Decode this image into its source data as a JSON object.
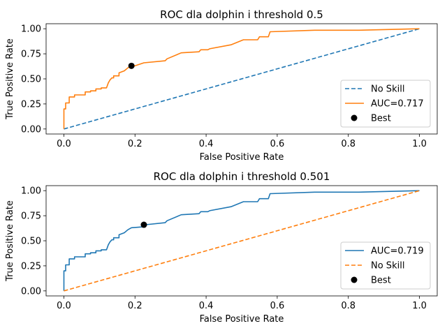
{
  "chart_data": [
    {
      "type": "line",
      "title": "ROC dla dolphin i threshold  0.5",
      "xlabel": "False Positive Rate",
      "ylabel": "True Positive Rate",
      "xlim": [
        -0.05,
        1.05
      ],
      "ylim": [
        -0.05,
        1.05
      ],
      "xticks": [
        "0.0",
        "0.2",
        "0.4",
        "0.6",
        "0.8",
        "1.0"
      ],
      "yticks": [
        "0.00",
        "0.25",
        "0.50",
        "0.75",
        "1.00"
      ],
      "grid": false,
      "legend_position": "lower-right",
      "series": [
        {
          "name": "No Skill",
          "color": "#1f77b4",
          "style": "dashed",
          "x": [
            0,
            1
          ],
          "y": [
            0,
            1
          ]
        },
        {
          "name": "AUC=0.717",
          "color": "#ff7f0e",
          "style": "solid",
          "x": [
            0,
            0,
            0.005,
            0.005,
            0.015,
            0.015,
            0.03,
            0.03,
            0.06,
            0.06,
            0.075,
            0.075,
            0.09,
            0.09,
            0.105,
            0.105,
            0.12,
            0.125,
            0.13,
            0.135,
            0.14,
            0.14,
            0.155,
            0.155,
            0.17,
            0.18,
            0.19,
            0.2,
            0.225,
            0.285,
            0.29,
            0.33,
            0.38,
            0.385,
            0.405,
            0.41,
            0.47,
            0.505,
            0.545,
            0.55,
            0.575,
            0.58,
            0.705,
            0.83,
            1.0
          ],
          "y": [
            0,
            0.2,
            0.2,
            0.26,
            0.26,
            0.32,
            0.32,
            0.34,
            0.34,
            0.37,
            0.37,
            0.38,
            0.38,
            0.4,
            0.4,
            0.41,
            0.41,
            0.46,
            0.49,
            0.51,
            0.51,
            0.53,
            0.53,
            0.56,
            0.58,
            0.61,
            0.63,
            0.63,
            0.66,
            0.68,
            0.7,
            0.76,
            0.77,
            0.79,
            0.79,
            0.8,
            0.84,
            0.89,
            0.89,
            0.92,
            0.92,
            0.97,
            0.985,
            0.985,
            1.0
          ]
        },
        {
          "name": "Best",
          "color": "#000000",
          "style": "point",
          "x": [
            0.19
          ],
          "y": [
            0.63
          ]
        }
      ]
    },
    {
      "type": "line",
      "title": "ROC dla dolphin i threshold  0.501",
      "xlabel": "False Positive Rate",
      "ylabel": "True Positive Rate",
      "xlim": [
        -0.05,
        1.05
      ],
      "ylim": [
        -0.05,
        1.05
      ],
      "xticks": [
        "0.0",
        "0.2",
        "0.4",
        "0.6",
        "0.8",
        "1.0"
      ],
      "yticks": [
        "0.00",
        "0.25",
        "0.50",
        "0.75",
        "1.00"
      ],
      "grid": false,
      "legend_position": "lower-right",
      "series": [
        {
          "name": "AUC=0.719",
          "color": "#1f77b4",
          "style": "solid",
          "x": [
            0,
            0,
            0.005,
            0.005,
            0.015,
            0.015,
            0.03,
            0.03,
            0.06,
            0.06,
            0.075,
            0.075,
            0.09,
            0.09,
            0.105,
            0.105,
            0.12,
            0.125,
            0.13,
            0.135,
            0.14,
            0.14,
            0.155,
            0.155,
            0.17,
            0.18,
            0.19,
            0.225,
            0.23,
            0.285,
            0.29,
            0.33,
            0.38,
            0.385,
            0.405,
            0.41,
            0.47,
            0.505,
            0.545,
            0.55,
            0.575,
            0.58,
            0.705,
            0.83,
            1.0
          ],
          "y": [
            0,
            0.2,
            0.2,
            0.26,
            0.26,
            0.32,
            0.32,
            0.34,
            0.34,
            0.37,
            0.37,
            0.38,
            0.38,
            0.4,
            0.4,
            0.41,
            0.41,
            0.46,
            0.49,
            0.51,
            0.51,
            0.53,
            0.53,
            0.56,
            0.58,
            0.61,
            0.63,
            0.64,
            0.66,
            0.68,
            0.7,
            0.76,
            0.77,
            0.79,
            0.79,
            0.8,
            0.84,
            0.89,
            0.89,
            0.92,
            0.92,
            0.97,
            0.985,
            0.985,
            1.0
          ]
        },
        {
          "name": "No Skill",
          "color": "#ff7f0e",
          "style": "dashed",
          "x": [
            0,
            1
          ],
          "y": [
            0,
            1
          ]
        },
        {
          "name": "Best",
          "color": "#000000",
          "style": "point",
          "x": [
            0.225
          ],
          "y": [
            0.66
          ]
        }
      ]
    }
  ]
}
